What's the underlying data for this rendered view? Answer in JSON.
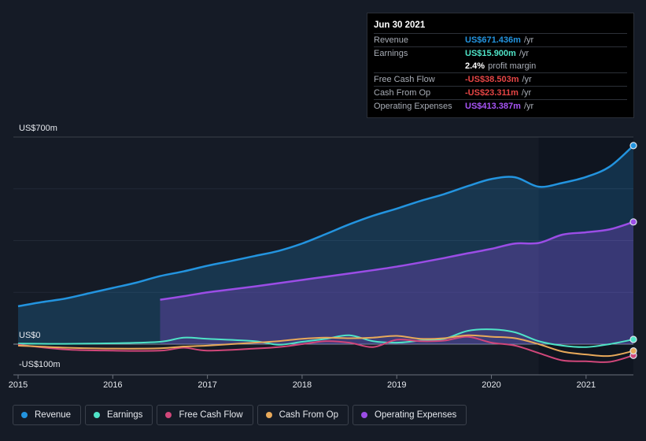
{
  "tooltip": {
    "date": "Jun 30 2021",
    "rows": [
      {
        "label": "Revenue",
        "value": "US$671.436m",
        "unit": "/yr",
        "color": "#2394df"
      },
      {
        "label": "Earnings",
        "value": "US$15.900m",
        "unit": "/yr",
        "color": "#4fe3c7"
      },
      {
        "label": "",
        "value": "2.4%",
        "unit": "profit margin",
        "color": "#ffffff"
      },
      {
        "label": "Free Cash Flow",
        "value": "-US$38.503m",
        "unit": "/yr",
        "color": "#e64545"
      },
      {
        "label": "Cash From Op",
        "value": "-US$23.311m",
        "unit": "/yr",
        "color": "#e64545"
      },
      {
        "label": "Operating Expenses",
        "value": "US$413.387m",
        "unit": "/yr",
        "color": "#a855f7"
      }
    ]
  },
  "legend": [
    {
      "label": "Revenue",
      "color": "#2394df"
    },
    {
      "label": "Earnings",
      "color": "#4fe3c7"
    },
    {
      "label": "Free Cash Flow",
      "color": "#d1477a"
    },
    {
      "label": "Cash From Op",
      "color": "#e8a95a"
    },
    {
      "label": "Operating Expenses",
      "color": "#9b4de6"
    }
  ],
  "chart_data": {
    "type": "area",
    "title": "",
    "xlabel": "",
    "ylabel": "",
    "y_labels": [
      "US$700m",
      "US$0",
      "-US$100m"
    ],
    "ylim": [
      -100,
      700
    ],
    "xlim": [
      2014.95,
      2021.5
    ],
    "x_ticks": [
      "2015",
      "2016",
      "2017",
      "2018",
      "2019",
      "2020",
      "2021"
    ],
    "x_tick_values": [
      2015,
      2016,
      2017,
      2018,
      2019,
      2020,
      2021
    ],
    "highlight_start": 2020.5,
    "series": [
      {
        "name": "Revenue",
        "color": "#2394df",
        "fill": true,
        "x": [
          2015.0,
          2015.25,
          2015.5,
          2015.75,
          2016.0,
          2016.25,
          2016.5,
          2016.75,
          2017.0,
          2017.25,
          2017.5,
          2017.75,
          2018.0,
          2018.25,
          2018.5,
          2018.75,
          2019.0,
          2019.25,
          2019.5,
          2019.75,
          2020.0,
          2020.25,
          2020.5,
          2020.75,
          2021.0,
          2021.25,
          2021.5
        ],
        "values": [
          128,
          142,
          154,
          172,
          190,
          208,
          230,
          246,
          265,
          281,
          298,
          315,
          340,
          372,
          405,
          434,
          458,
          484,
          507,
          534,
          558,
          564,
          532,
          545,
          565,
          600,
          671
        ]
      },
      {
        "name": "Operating Expenses",
        "color": "#9b4de6",
        "fill": true,
        "x": [
          2016.5,
          2016.75,
          2017.0,
          2017.25,
          2017.5,
          2017.75,
          2018.0,
          2018.25,
          2018.5,
          2018.75,
          2019.0,
          2019.25,
          2019.5,
          2019.75,
          2020.0,
          2020.25,
          2020.5,
          2020.75,
          2021.0,
          2021.25,
          2021.5
        ],
        "values": [
          150,
          162,
          175,
          185,
          195,
          206,
          217,
          228,
          239,
          250,
          262,
          276,
          291,
          307,
          322,
          340,
          342,
          370,
          378,
          388,
          413
        ]
      },
      {
        "name": "Earnings",
        "color": "#4fe3c7",
        "fill": false,
        "x": [
          2015.0,
          2015.5,
          2016.0,
          2016.5,
          2016.75,
          2017.0,
          2017.5,
          2017.75,
          2018.0,
          2018.25,
          2018.5,
          2018.75,
          2019.0,
          2019.25,
          2019.5,
          2019.75,
          2020.0,
          2020.25,
          2020.5,
          2020.75,
          2021.0,
          2021.25,
          2021.5
        ],
        "values": [
          2,
          1,
          3,
          8,
          22,
          18,
          10,
          -2,
          8,
          18,
          30,
          10,
          5,
          12,
          18,
          45,
          50,
          40,
          10,
          -5,
          -10,
          0,
          16
        ]
      },
      {
        "name": "Free Cash Flow",
        "color": "#d1477a",
        "fill": false,
        "x": [
          2015.0,
          2015.5,
          2016.0,
          2016.5,
          2016.75,
          2017.0,
          2017.5,
          2017.75,
          2018.0,
          2018.25,
          2018.5,
          2018.75,
          2019.0,
          2019.25,
          2019.5,
          2019.75,
          2020.0,
          2020.25,
          2020.5,
          2020.75,
          2021.0,
          2021.25,
          2021.5
        ],
        "values": [
          -2,
          -18,
          -22,
          -22,
          -12,
          -22,
          -15,
          -10,
          0,
          10,
          5,
          -10,
          15,
          10,
          12,
          25,
          5,
          -5,
          -30,
          -55,
          -58,
          -60,
          -38
        ]
      },
      {
        "name": "Cash From Op",
        "color": "#e8a95a",
        "fill": false,
        "x": [
          2015.0,
          2015.5,
          2016.0,
          2016.5,
          2016.75,
          2017.0,
          2017.5,
          2017.75,
          2018.0,
          2018.25,
          2018.5,
          2018.75,
          2019.0,
          2019.25,
          2019.5,
          2019.75,
          2020.0,
          2020.25,
          2020.5,
          2020.75,
          2021.0,
          2021.25,
          2021.5
        ],
        "values": [
          -5,
          -12,
          -15,
          -14,
          -8,
          -5,
          5,
          10,
          18,
          22,
          20,
          22,
          28,
          18,
          20,
          30,
          25,
          20,
          0,
          -25,
          -35,
          -40,
          -23
        ]
      }
    ]
  }
}
